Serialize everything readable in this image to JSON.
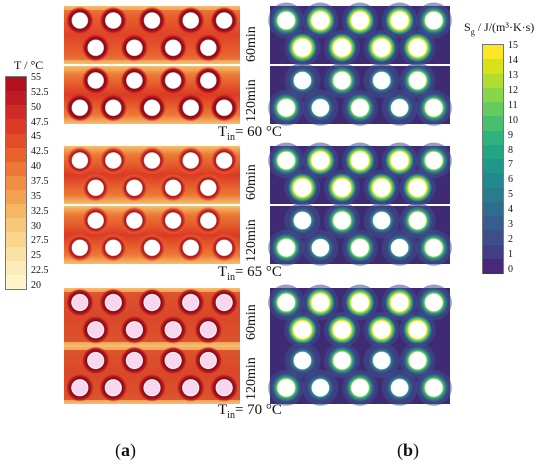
{
  "figure": {
    "temp_legend": {
      "title": "T / °C",
      "ticks": [
        "55",
        "52.5",
        "50",
        "47.5",
        "45",
        "42.5",
        "40",
        "37.5",
        "35",
        "32.5",
        "30",
        "27.5",
        "25",
        "22.5",
        "20"
      ],
      "colors": [
        "#b01020",
        "#c01a22",
        "#d02a24",
        "#dc3a24",
        "#e34e28",
        "#e9622e",
        "#ee7838",
        "#f18e44",
        "#f4a252",
        "#f6b664",
        "#f8c878",
        "#f9d68c",
        "#fbe2a2",
        "#fcecb8",
        "#fdf4cc"
      ]
    },
    "sg_legend": {
      "title_main": "S",
      "title_sub": "g",
      "title_rest": " / J/(m³·K·s)",
      "ticks": [
        "15",
        "14",
        "13",
        "12",
        "11",
        "10",
        "9",
        "8",
        "7",
        "6",
        "5",
        "4",
        "3",
        "2",
        "1",
        "0"
      ],
      "colors": [
        "#fde725",
        "#d8e219",
        "#b0dd2f",
        "#89d548",
        "#65cb5e",
        "#46c06f",
        "#2eb37c",
        "#21a585",
        "#1f978b",
        "#23898e",
        "#297b8e",
        "#2e6d8e",
        "#355e8d",
        "#3d4e8a",
        "#433e85",
        "#482878"
      ]
    },
    "rows": [
      {
        "tin": "T",
        "tin_sub": "in",
        "tin_value": "= 60 °C",
        "time_top": "60min",
        "time_bottom": "120min"
      },
      {
        "tin": "T",
        "tin_sub": "in",
        "tin_value": "= 65 °C",
        "time_top": "60min",
        "time_bottom": "120min"
      },
      {
        "tin": "T",
        "tin_sub": "in",
        "tin_value": "= 70 °C",
        "time_top": "60min",
        "time_bottom": "120min"
      }
    ],
    "labels": {
      "a": "a",
      "b": "b"
    }
  }
}
